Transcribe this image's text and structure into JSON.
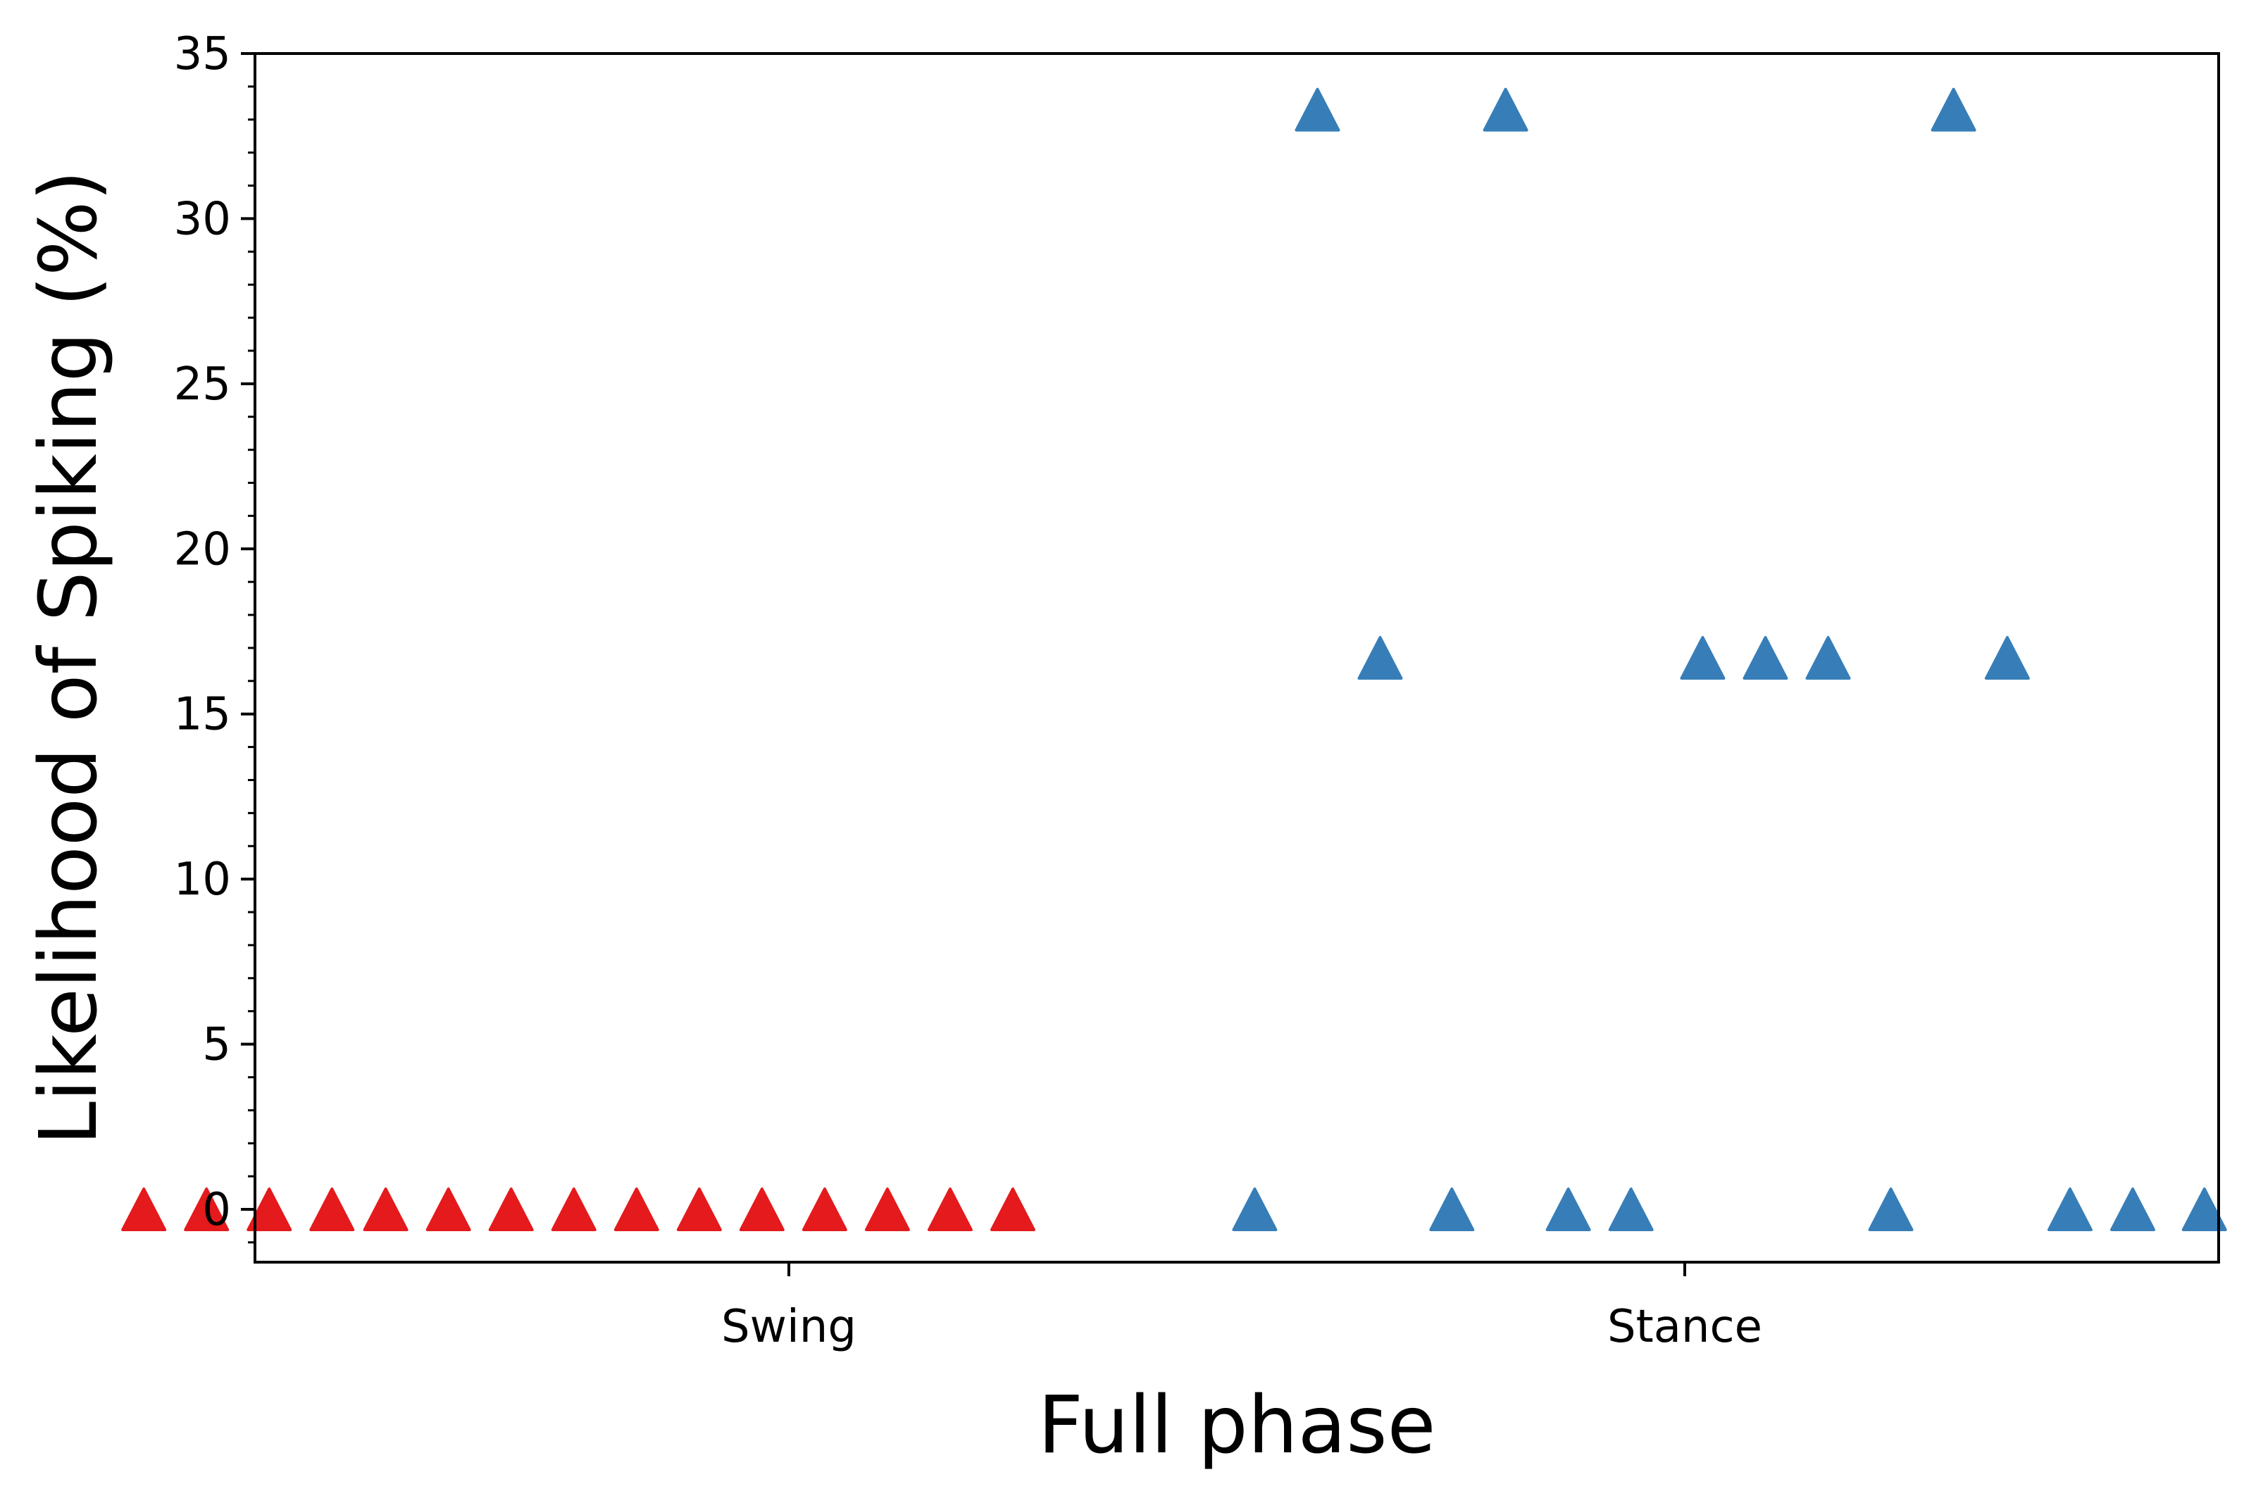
{
  "chart_data": {
    "type": "scatter",
    "title": "",
    "xlabel": "Full phase",
    "ylabel": "Likelihood of Spiking (%)",
    "ylim": [
      -1.6,
      35
    ],
    "y_ticks": [
      0,
      5,
      10,
      15,
      20,
      25,
      30,
      35
    ],
    "y_minor_step": 1,
    "x_categories": [
      "Swing",
      "Stance"
    ],
    "grid": false,
    "legend": "none",
    "marker": "triangle-up",
    "colors": {
      "swing": "#e41a1c",
      "stance": "#377eb8"
    },
    "series": [
      {
        "category": "Swing",
        "color": "#e41a1c",
        "x": [
          -0.72,
          -0.65,
          -0.58,
          -0.51,
          -0.45,
          -0.38,
          -0.31,
          -0.24,
          -0.17,
          -0.1,
          -0.03,
          0.04,
          0.11,
          0.18,
          0.25
        ],
        "y": [
          0,
          0,
          0,
          0,
          0,
          0,
          0,
          0,
          0,
          0,
          0,
          0,
          0,
          0,
          0
        ]
      },
      {
        "category": "Stance",
        "color": "#377eb8",
        "x": [
          -0.48,
          -0.41,
          -0.34,
          -0.26,
          -0.2,
          -0.13,
          -0.06,
          0.02,
          0.09,
          0.16,
          0.23,
          0.3,
          0.36,
          0.43,
          0.5,
          0.58
        ],
        "y": [
          0,
          33.3,
          16.7,
          0,
          33.3,
          0,
          0,
          16.7,
          16.7,
          16.7,
          0,
          33.3,
          16.7,
          0,
          0,
          0
        ]
      }
    ]
  }
}
